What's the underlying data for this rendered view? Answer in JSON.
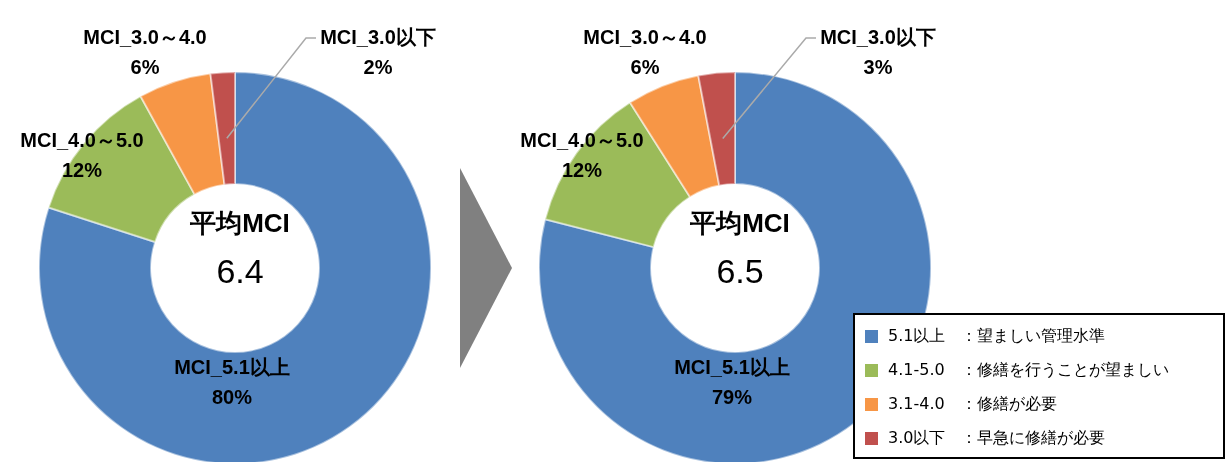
{
  "chart_data": [
    {
      "type": "donut",
      "categories": [
        "MCI_5.1以上",
        "MCI_4.0～5.0",
        "MCI_3.0～4.0",
        "MCI_3.0以下"
      ],
      "values": [
        80,
        12,
        6,
        2
      ],
      "value_labels": [
        "80%",
        "12%",
        "6%",
        "2%"
      ],
      "colors": [
        "#4f81bd",
        "#9bbb59",
        "#f79646",
        "#c0504d"
      ],
      "annotations": [
        "平均MCI",
        "6.4"
      ],
      "legend": false
    },
    {
      "type": "donut",
      "categories": [
        "MCI_5.1以上",
        "MCI_4.0～5.0",
        "MCI_3.0～4.0",
        "MCI_3.0以下"
      ],
      "values": [
        79,
        12,
        6,
        3
      ],
      "value_labels": [
        "79%",
        "12%",
        "6%",
        "3%"
      ],
      "colors": [
        "#4f81bd",
        "#9bbb59",
        "#f79646",
        "#c0504d"
      ],
      "annotations": [
        "平均MCI",
        "6.5"
      ],
      "legend": false
    },
    {
      "type": "other",
      "categories": [
        "5.1以上　：望ましい管理水準",
        "4.1-5.0　：修繕を行うことが望ましい",
        "3.1-4.0　：修繕が必要",
        "3.0以下　：早急に修繕が必要"
      ],
      "colors": [
        "#4f81bd",
        "#9bbb59",
        "#f79646",
        "#c0504d"
      ]
    }
  ]
}
